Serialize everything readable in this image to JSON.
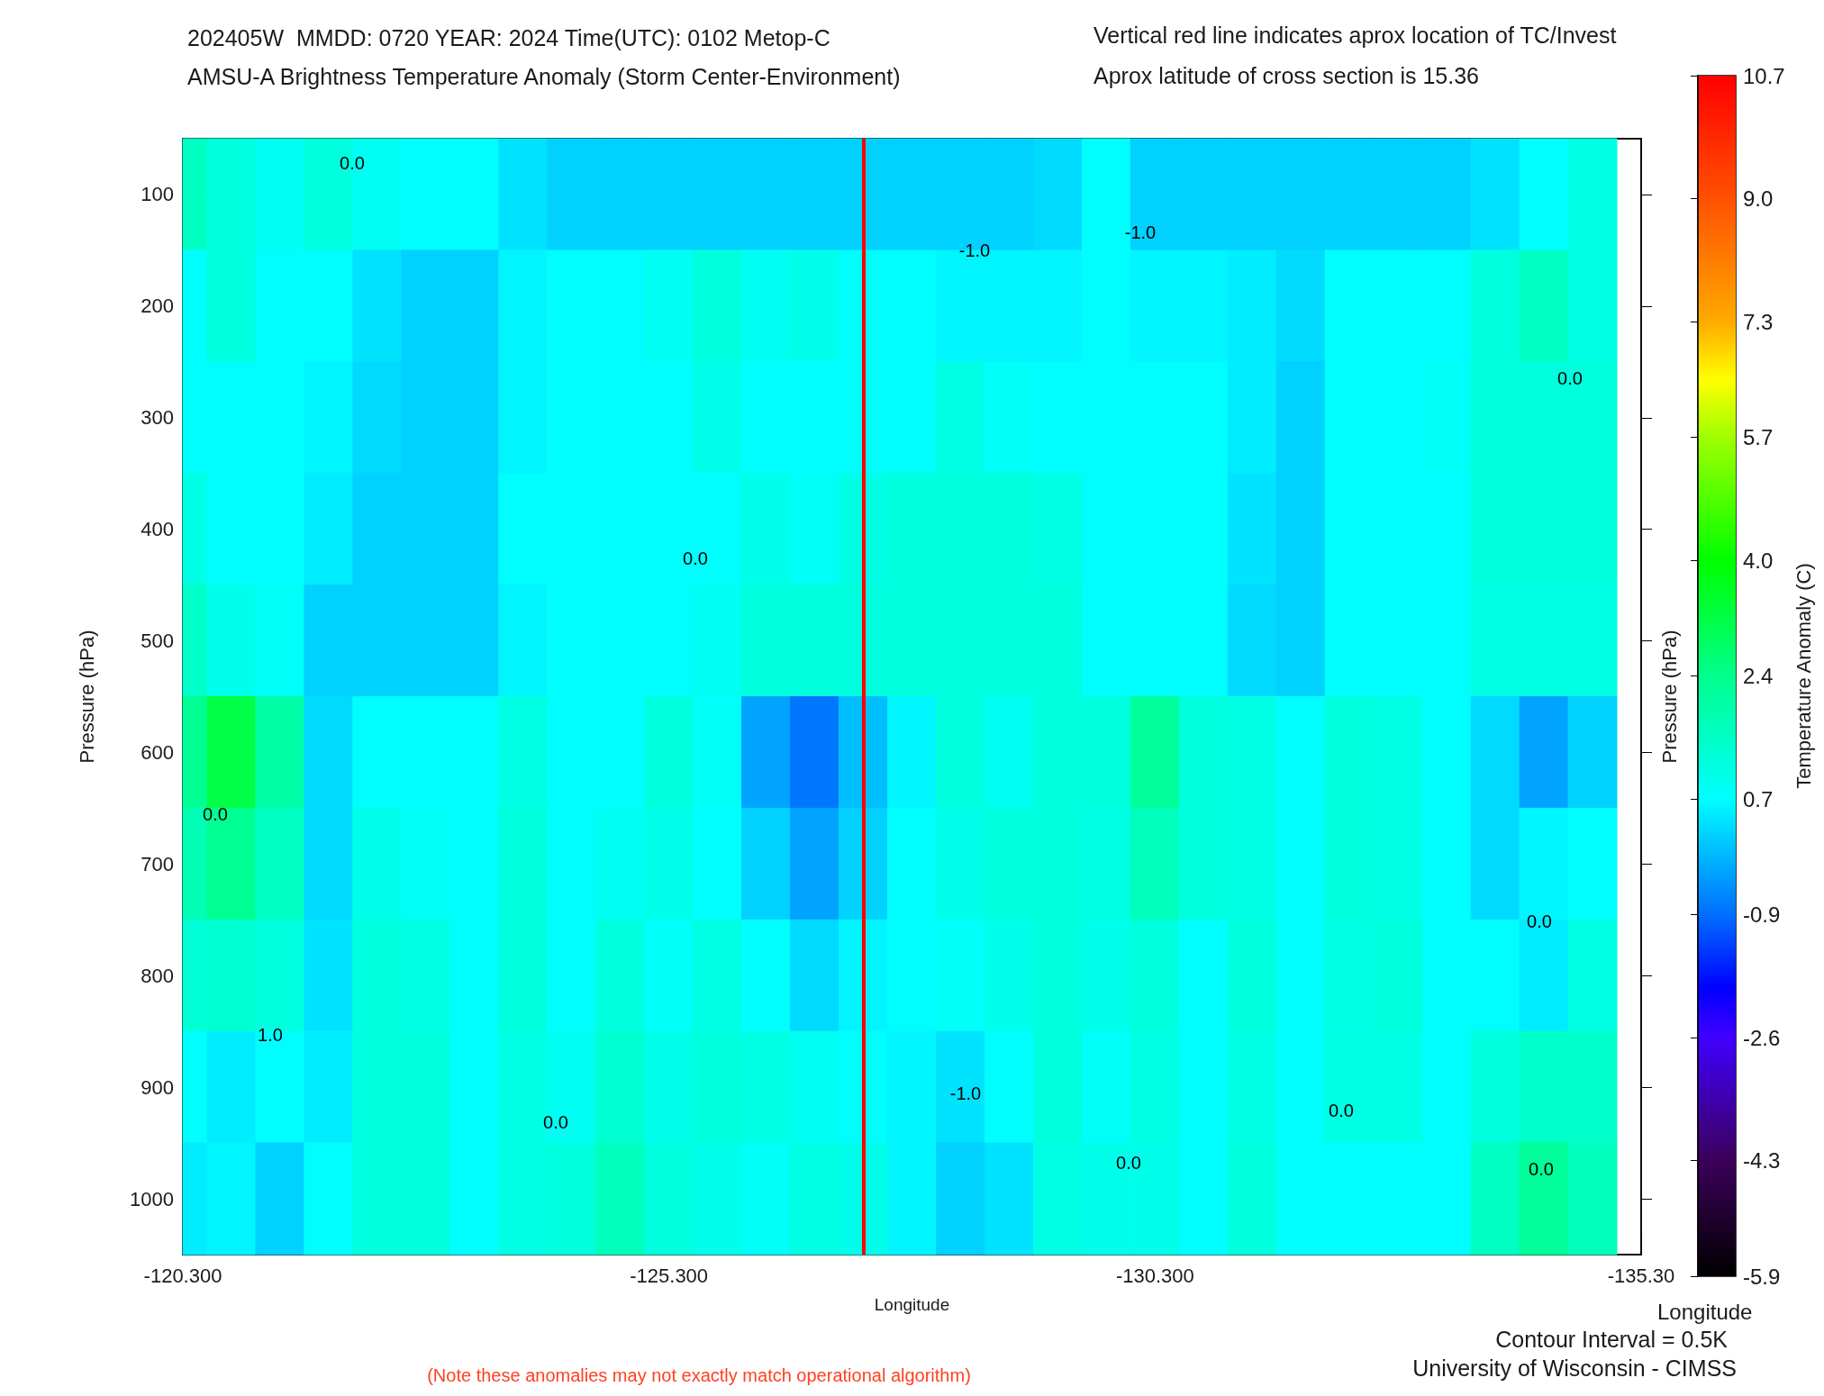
{
  "chart_data": {
    "type": "heatmap",
    "title": "202405W  MMDD: 0720 YEAR: 2024 Time(UTC): 0102 Metop-C",
    "subtitle": "AMSU-A Brightness Temperature Anomaly (Storm Center-Environment)",
    "xlabel": "Longitude",
    "ylabel": "Pressure (hPa)",
    "y2label": "Pressure (hPa)",
    "clabel": "Temperature Anomaly (C)",
    "x": [
      -120.3,
      -120.8,
      -121.3,
      -121.8,
      -122.3,
      -122.8,
      -123.3,
      -123.8,
      -124.3,
      -124.8,
      -125.3,
      -125.8,
      -126.3,
      -126.8,
      -127.3,
      -127.8,
      -128.3,
      -128.8,
      -129.3,
      -129.8,
      -130.3,
      -130.8,
      -131.3,
      -131.8,
      -132.3,
      -132.8,
      -133.3,
      -133.8,
      -134.3,
      -134.8
    ],
    "xlim": [
      -120.3,
      -135.3
    ],
    "xticks": [
      {
        "value": -120.3,
        "label": "-120.300"
      },
      {
        "value": -125.3,
        "label": "-125.300"
      },
      {
        "value": -130.3,
        "label": "-130.300"
      },
      {
        "value": -135.3,
        "label": "-135.30"
      }
    ],
    "y_categories": [
      "100",
      "200",
      "300",
      "400",
      "500",
      "600",
      "700",
      "800",
      "900",
      "1000"
    ],
    "cells": [
      [
        1.6,
        1.2,
        0.9,
        1.2,
        0.9,
        0.7,
        0.7,
        0.4,
        0.2,
        0.2,
        0.2,
        0.2,
        0.2,
        0.2,
        0.2,
        0.2,
        0.2,
        0.2,
        0.3,
        0.7,
        0.2,
        0.2,
        0.2,
        0.2,
        0.2,
        0.2,
        0.2,
        0.4,
        0.7,
        1.1
      ],
      [
        0.7,
        1.2,
        0.7,
        0.7,
        0.4,
        0.2,
        0.2,
        0.6,
        0.7,
        0.7,
        0.9,
        1.2,
        0.9,
        1.0,
        0.7,
        0.7,
        0.6,
        0.6,
        0.6,
        0.7,
        0.6,
        0.6,
        0.5,
        0.3,
        0.7,
        0.7,
        0.7,
        1.2,
        1.6,
        1.1
      ],
      [
        0.7,
        0.7,
        0.7,
        0.6,
        0.3,
        0.2,
        0.2,
        0.6,
        0.7,
        0.7,
        0.7,
        1.0,
        0.7,
        0.7,
        0.7,
        0.7,
        1.1,
        0.8,
        0.7,
        0.7,
        0.7,
        0.7,
        0.5,
        0.2,
        0.7,
        0.7,
        0.8,
        1.2,
        1.2,
        1.2
      ],
      [
        1.1,
        0.7,
        0.7,
        0.5,
        0.2,
        0.2,
        0.2,
        0.7,
        0.7,
        0.7,
        0.7,
        0.7,
        1.0,
        0.8,
        1.1,
        1.2,
        1.2,
        1.2,
        1.1,
        0.7,
        0.7,
        0.7,
        0.4,
        0.2,
        0.7,
        0.7,
        0.7,
        1.2,
        1.2,
        1.2
      ],
      [
        1.5,
        1.0,
        0.8,
        0.2,
        0.2,
        0.2,
        0.2,
        0.6,
        0.7,
        0.7,
        0.7,
        0.9,
        1.2,
        1.2,
        1.2,
        1.2,
        1.2,
        1.2,
        1.2,
        0.7,
        0.7,
        0.7,
        0.3,
        0.2,
        0.7,
        0.7,
        0.7,
        1.1,
        1.1,
        1.1
      ],
      [
        2.3,
        3.2,
        2.0,
        0.3,
        0.7,
        0.7,
        0.7,
        1.1,
        0.7,
        0.7,
        1.2,
        0.8,
        -0.3,
        -0.8,
        0,
        0.6,
        1.2,
        0.9,
        1.2,
        1.2,
        2.2,
        1.2,
        1.1,
        0.7,
        1.2,
        1.1,
        0.7,
        0.3,
        -0.3,
        0.2
      ],
      [
        1.8,
        2.3,
        1.6,
        0.3,
        1.0,
        0.8,
        0.7,
        1.2,
        0.7,
        0.9,
        1.0,
        0.7,
        0.2,
        -0.3,
        0.2,
        0.7,
        1.0,
        1.2,
        1.2,
        1.1,
        1.7,
        1.2,
        1.1,
        0.7,
        1.2,
        1.1,
        0.7,
        0.3,
        0.6,
        0.7
      ],
      [
        1.3,
        1.4,
        1.2,
        0.4,
        1.2,
        1.1,
        0.7,
        1.2,
        0.7,
        1.2,
        0.8,
        1.1,
        0.7,
        0.3,
        0.6,
        0.7,
        0.8,
        1.0,
        1.2,
        1.0,
        1.2,
        0.7,
        1.2,
        0.7,
        1.1,
        1.2,
        0.7,
        0.7,
        0.5,
        1.1
      ],
      [
        0.7,
        0.5,
        0.7,
        0.5,
        1.2,
        1.2,
        0.7,
        1.1,
        0.9,
        1.4,
        1.0,
        1.2,
        1.1,
        0.9,
        0.7,
        0.6,
        0.4,
        0.7,
        1.2,
        0.8,
        1.1,
        0.7,
        1.1,
        0.7,
        1.1,
        1.1,
        0.7,
        1.2,
        1.5,
        1.5
      ],
      [
        0.5,
        0.6,
        0.2,
        0.7,
        1.2,
        1.2,
        0.7,
        1.1,
        1.2,
        1.7,
        1.2,
        1.0,
        0.8,
        1.1,
        1.0,
        0.6,
        0.2,
        0.4,
        1.1,
        1.0,
        1.0,
        0.7,
        1.2,
        0.7,
        0.7,
        0.7,
        0.7,
        1.6,
        2.2,
        1.7
      ]
    ],
    "clim": [
      -5.9,
      10.7
    ],
    "cticks": [
      -5.9,
      -4.3,
      -2.6,
      -0.9,
      0.7,
      2.4,
      {
        "value": 4,
        "label": "4.0"
      },
      5.7,
      7.3,
      {
        "value": 9,
        "label": "9.0"
      },
      10.7
    ],
    "ref_lines": [
      {
        "axis": "x",
        "value": -127.3,
        "color": "#ff0000"
      }
    ],
    "annotations": [
      "Vertical red line indicates aprox location of TC/Invest",
      "Aprox latitude of cross section is 15.36",
      "Contour Interval = 0.5K",
      "University of Wisconsin - CIMSS",
      "(Note these anomalies may not exactly match operational algorithm)",
      "Longitude",
      "0.0",
      "-1.0",
      "-1.0",
      "0.0",
      "0.0",
      "0.0",
      "0.0",
      "1.0",
      "-1.0",
      "0.0",
      "0.0",
      "0.0",
      "0.0"
    ]
  }
}
